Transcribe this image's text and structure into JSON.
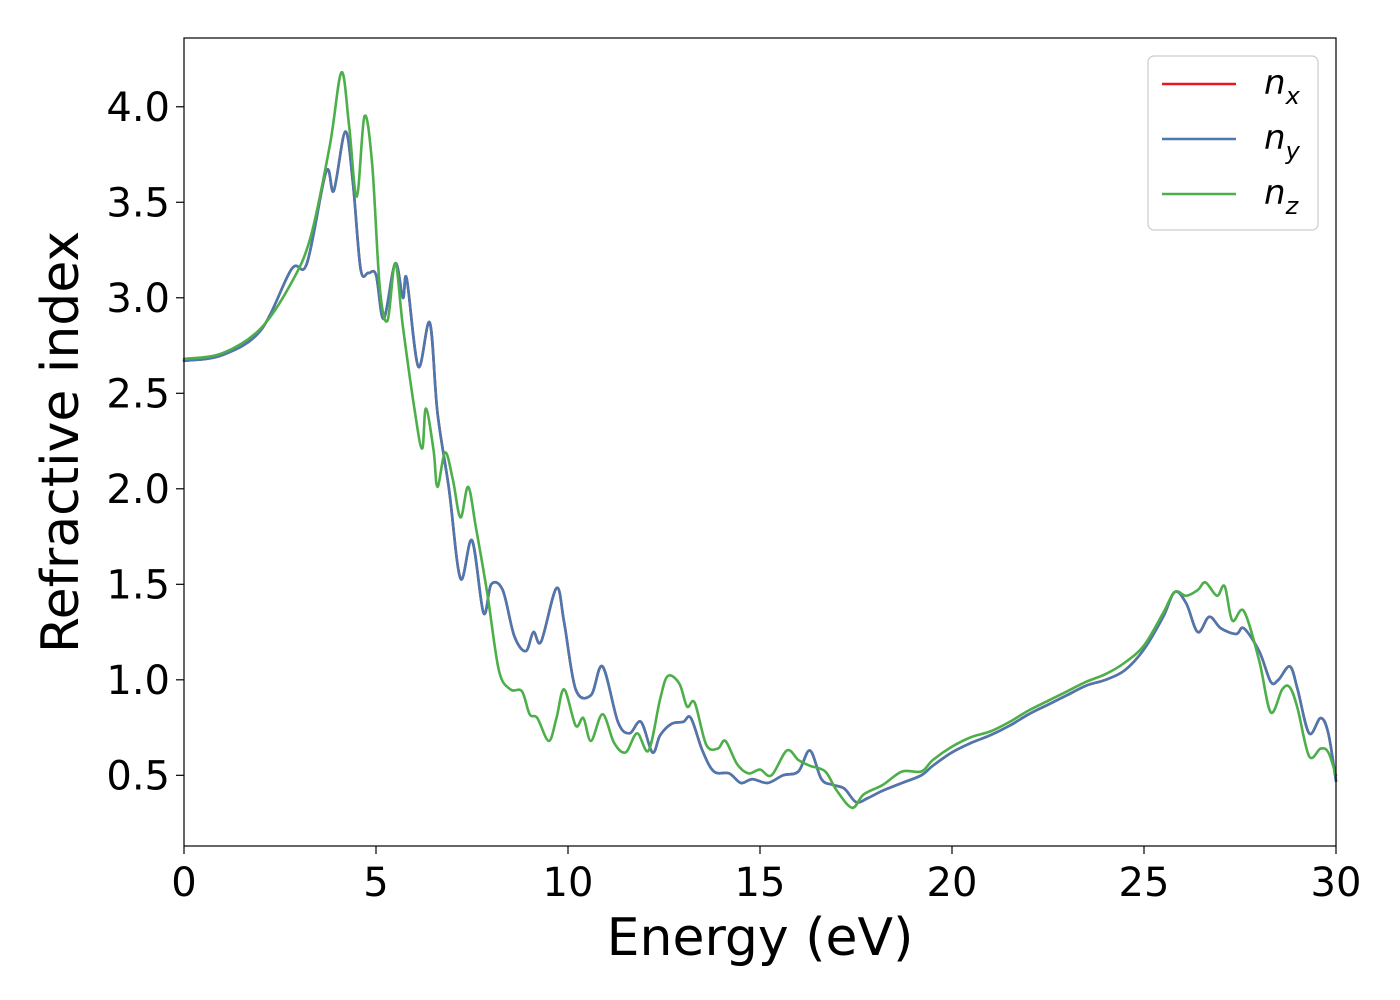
{
  "chart_data": {
    "type": "line",
    "title": "",
    "xlabel": "Energy (eV)",
    "ylabel": "Refractive index",
    "xlim": [
      0,
      30
    ],
    "ylim": [
      0.13,
      4.36
    ],
    "xticks": [
      0,
      5,
      10,
      15,
      20,
      25,
      30
    ],
    "xtick_labels": [
      "0",
      "5",
      "10",
      "15",
      "20",
      "25",
      "30"
    ],
    "yticks": [
      0.5,
      1.0,
      1.5,
      2.0,
      2.5,
      3.0,
      3.5,
      4.0
    ],
    "ytick_labels": [
      "0.5",
      "1.0",
      "1.5",
      "2.0",
      "2.5",
      "3.0",
      "3.5",
      "4.0"
    ],
    "grid": false,
    "legend_position": "top-right",
    "series": [
      {
        "name": "n_x",
        "label_base": "n",
        "label_sub": "x",
        "color": "#e41a1c",
        "points": [
          [
            0,
            2.67
          ],
          [
            1,
            2.7
          ],
          [
            2,
            2.83
          ],
          [
            2.8,
            3.15
          ],
          [
            3.2,
            3.18
          ],
          [
            3.7,
            3.66
          ],
          [
            3.9,
            3.56
          ],
          [
            4.2,
            3.87
          ],
          [
            4.4,
            3.6
          ],
          [
            4.6,
            3.15
          ],
          [
            4.8,
            3.13
          ],
          [
            5.0,
            3.12
          ],
          [
            5.2,
            2.89
          ],
          [
            5.5,
            3.18
          ],
          [
            5.7,
            3.0
          ],
          [
            5.8,
            3.1
          ],
          [
            6.1,
            2.64
          ],
          [
            6.4,
            2.87
          ],
          [
            6.6,
            2.4
          ],
          [
            6.9,
            2.0
          ],
          [
            7.2,
            1.53
          ],
          [
            7.5,
            1.73
          ],
          [
            7.8,
            1.35
          ],
          [
            8.0,
            1.5
          ],
          [
            8.3,
            1.47
          ],
          [
            8.6,
            1.23
          ],
          [
            8.9,
            1.15
          ],
          [
            9.1,
            1.25
          ],
          [
            9.3,
            1.2
          ],
          [
            9.7,
            1.48
          ],
          [
            9.9,
            1.3
          ],
          [
            10.2,
            0.95
          ],
          [
            10.6,
            0.92
          ],
          [
            10.9,
            1.07
          ],
          [
            11.3,
            0.78
          ],
          [
            11.6,
            0.72
          ],
          [
            11.9,
            0.78
          ],
          [
            12.2,
            0.62
          ],
          [
            12.4,
            0.71
          ],
          [
            12.7,
            0.77
          ],
          [
            13.0,
            0.78
          ],
          [
            13.2,
            0.8
          ],
          [
            13.5,
            0.63
          ],
          [
            13.8,
            0.52
          ],
          [
            14.2,
            0.51
          ],
          [
            14.5,
            0.46
          ],
          [
            14.8,
            0.48
          ],
          [
            15.2,
            0.46
          ],
          [
            15.6,
            0.5
          ],
          [
            16.0,
            0.52
          ],
          [
            16.3,
            0.63
          ],
          [
            16.6,
            0.48
          ],
          [
            16.9,
            0.45
          ],
          [
            17.2,
            0.43
          ],
          [
            17.5,
            0.36
          ],
          [
            17.8,
            0.38
          ],
          [
            18.2,
            0.42
          ],
          [
            18.7,
            0.46
          ],
          [
            19.2,
            0.5
          ],
          [
            19.5,
            0.55
          ],
          [
            20.0,
            0.62
          ],
          [
            20.5,
            0.67
          ],
          [
            21.0,
            0.71
          ],
          [
            21.5,
            0.76
          ],
          [
            22.0,
            0.82
          ],
          [
            22.5,
            0.87
          ],
          [
            23.0,
            0.92
          ],
          [
            23.5,
            0.97
          ],
          [
            24.0,
            1.0
          ],
          [
            24.5,
            1.05
          ],
          [
            25.0,
            1.16
          ],
          [
            25.5,
            1.33
          ],
          [
            25.8,
            1.46
          ],
          [
            26.1,
            1.4
          ],
          [
            26.4,
            1.25
          ],
          [
            26.7,
            1.33
          ],
          [
            27.0,
            1.27
          ],
          [
            27.4,
            1.24
          ],
          [
            27.6,
            1.27
          ],
          [
            28.0,
            1.15
          ],
          [
            28.3,
            0.99
          ],
          [
            28.5,
            1.0
          ],
          [
            28.8,
            1.07
          ],
          [
            29.0,
            0.95
          ],
          [
            29.3,
            0.72
          ],
          [
            29.6,
            0.8
          ],
          [
            29.8,
            0.72
          ],
          [
            30.0,
            0.47
          ]
        ]
      },
      {
        "name": "n_y",
        "label_base": "n",
        "label_sub": "y",
        "color": "#4c78b0",
        "points": [
          [
            0,
            2.67
          ],
          [
            1,
            2.7
          ],
          [
            2,
            2.83
          ],
          [
            2.8,
            3.15
          ],
          [
            3.2,
            3.18
          ],
          [
            3.7,
            3.66
          ],
          [
            3.9,
            3.56
          ],
          [
            4.2,
            3.87
          ],
          [
            4.4,
            3.6
          ],
          [
            4.6,
            3.15
          ],
          [
            4.8,
            3.13
          ],
          [
            5.0,
            3.12
          ],
          [
            5.2,
            2.89
          ],
          [
            5.5,
            3.18
          ],
          [
            5.7,
            3.0
          ],
          [
            5.8,
            3.1
          ],
          [
            6.1,
            2.64
          ],
          [
            6.4,
            2.87
          ],
          [
            6.6,
            2.4
          ],
          [
            6.9,
            2.0
          ],
          [
            7.2,
            1.53
          ],
          [
            7.5,
            1.73
          ],
          [
            7.8,
            1.35
          ],
          [
            8.0,
            1.5
          ],
          [
            8.3,
            1.47
          ],
          [
            8.6,
            1.23
          ],
          [
            8.9,
            1.15
          ],
          [
            9.1,
            1.25
          ],
          [
            9.3,
            1.2
          ],
          [
            9.7,
            1.48
          ],
          [
            9.9,
            1.3
          ],
          [
            10.2,
            0.95
          ],
          [
            10.6,
            0.92
          ],
          [
            10.9,
            1.07
          ],
          [
            11.3,
            0.78
          ],
          [
            11.6,
            0.72
          ],
          [
            11.9,
            0.78
          ],
          [
            12.2,
            0.62
          ],
          [
            12.4,
            0.71
          ],
          [
            12.7,
            0.77
          ],
          [
            13.0,
            0.78
          ],
          [
            13.2,
            0.8
          ],
          [
            13.5,
            0.63
          ],
          [
            13.8,
            0.52
          ],
          [
            14.2,
            0.51
          ],
          [
            14.5,
            0.46
          ],
          [
            14.8,
            0.48
          ],
          [
            15.2,
            0.46
          ],
          [
            15.6,
            0.5
          ],
          [
            16.0,
            0.52
          ],
          [
            16.3,
            0.63
          ],
          [
            16.6,
            0.48
          ],
          [
            16.9,
            0.45
          ],
          [
            17.2,
            0.43
          ],
          [
            17.5,
            0.36
          ],
          [
            17.8,
            0.38
          ],
          [
            18.2,
            0.42
          ],
          [
            18.7,
            0.46
          ],
          [
            19.2,
            0.5
          ],
          [
            19.5,
            0.55
          ],
          [
            20.0,
            0.62
          ],
          [
            20.5,
            0.67
          ],
          [
            21.0,
            0.71
          ],
          [
            21.5,
            0.76
          ],
          [
            22.0,
            0.82
          ],
          [
            22.5,
            0.87
          ],
          [
            23.0,
            0.92
          ],
          [
            23.5,
            0.97
          ],
          [
            24.0,
            1.0
          ],
          [
            24.5,
            1.05
          ],
          [
            25.0,
            1.16
          ],
          [
            25.5,
            1.33
          ],
          [
            25.8,
            1.46
          ],
          [
            26.1,
            1.4
          ],
          [
            26.4,
            1.25
          ],
          [
            26.7,
            1.33
          ],
          [
            27.0,
            1.27
          ],
          [
            27.4,
            1.24
          ],
          [
            27.6,
            1.27
          ],
          [
            28.0,
            1.15
          ],
          [
            28.3,
            0.99
          ],
          [
            28.5,
            1.0
          ],
          [
            28.8,
            1.07
          ],
          [
            29.0,
            0.95
          ],
          [
            29.3,
            0.72
          ],
          [
            29.6,
            0.8
          ],
          [
            29.8,
            0.72
          ],
          [
            30.0,
            0.47
          ]
        ]
      },
      {
        "name": "n_z",
        "label_base": "n",
        "label_sub": "z",
        "color": "#4daf4a",
        "points": [
          [
            0,
            2.68
          ],
          [
            1,
            2.71
          ],
          [
            2,
            2.84
          ],
          [
            2.8,
            3.08
          ],
          [
            3.3,
            3.32
          ],
          [
            3.8,
            3.8
          ],
          [
            4.1,
            4.18
          ],
          [
            4.3,
            3.9
          ],
          [
            4.5,
            3.53
          ],
          [
            4.7,
            3.95
          ],
          [
            4.9,
            3.7
          ],
          [
            5.1,
            3.05
          ],
          [
            5.3,
            2.88
          ],
          [
            5.5,
            3.18
          ],
          [
            5.7,
            2.85
          ],
          [
            6.0,
            2.42
          ],
          [
            6.2,
            2.21
          ],
          [
            6.3,
            2.42
          ],
          [
            6.5,
            2.2
          ],
          [
            6.6,
            2.01
          ],
          [
            6.8,
            2.19
          ],
          [
            7.0,
            2.05
          ],
          [
            7.2,
            1.85
          ],
          [
            7.4,
            2.01
          ],
          [
            7.6,
            1.8
          ],
          [
            7.9,
            1.45
          ],
          [
            8.2,
            1.05
          ],
          [
            8.5,
            0.95
          ],
          [
            8.8,
            0.94
          ],
          [
            9.0,
            0.82
          ],
          [
            9.2,
            0.8
          ],
          [
            9.5,
            0.68
          ],
          [
            9.7,
            0.8
          ],
          [
            9.9,
            0.95
          ],
          [
            10.2,
            0.76
          ],
          [
            10.4,
            0.8
          ],
          [
            10.6,
            0.68
          ],
          [
            10.9,
            0.82
          ],
          [
            11.2,
            0.67
          ],
          [
            11.5,
            0.62
          ],
          [
            11.8,
            0.72
          ],
          [
            12.1,
            0.63
          ],
          [
            12.4,
            0.9
          ],
          [
            12.6,
            1.02
          ],
          [
            12.9,
            0.98
          ],
          [
            13.1,
            0.86
          ],
          [
            13.3,
            0.88
          ],
          [
            13.6,
            0.66
          ],
          [
            13.9,
            0.64
          ],
          [
            14.1,
            0.68
          ],
          [
            14.4,
            0.56
          ],
          [
            14.7,
            0.51
          ],
          [
            15.0,
            0.53
          ],
          [
            15.3,
            0.5
          ],
          [
            15.7,
            0.63
          ],
          [
            16.0,
            0.58
          ],
          [
            16.3,
            0.55
          ],
          [
            16.7,
            0.52
          ],
          [
            17.0,
            0.42
          ],
          [
            17.4,
            0.33
          ],
          [
            17.7,
            0.4
          ],
          [
            18.2,
            0.45
          ],
          [
            18.7,
            0.52
          ],
          [
            19.2,
            0.52
          ],
          [
            19.5,
            0.58
          ],
          [
            20.0,
            0.65
          ],
          [
            20.5,
            0.7
          ],
          [
            21.0,
            0.73
          ],
          [
            21.5,
            0.78
          ],
          [
            22.0,
            0.84
          ],
          [
            22.5,
            0.89
          ],
          [
            23.0,
            0.94
          ],
          [
            23.5,
            0.99
          ],
          [
            24.0,
            1.03
          ],
          [
            24.5,
            1.09
          ],
          [
            25.0,
            1.18
          ],
          [
            25.5,
            1.35
          ],
          [
            25.8,
            1.46
          ],
          [
            26.1,
            1.44
          ],
          [
            26.4,
            1.47
          ],
          [
            26.6,
            1.51
          ],
          [
            26.9,
            1.44
          ],
          [
            27.1,
            1.49
          ],
          [
            27.3,
            1.31
          ],
          [
            27.6,
            1.36
          ],
          [
            28.0,
            1.1
          ],
          [
            28.3,
            0.83
          ],
          [
            28.6,
            0.95
          ],
          [
            28.8,
            0.96
          ],
          [
            29.0,
            0.85
          ],
          [
            29.3,
            0.6
          ],
          [
            29.6,
            0.64
          ],
          [
            29.8,
            0.62
          ],
          [
            30.0,
            0.5
          ]
        ]
      }
    ]
  }
}
